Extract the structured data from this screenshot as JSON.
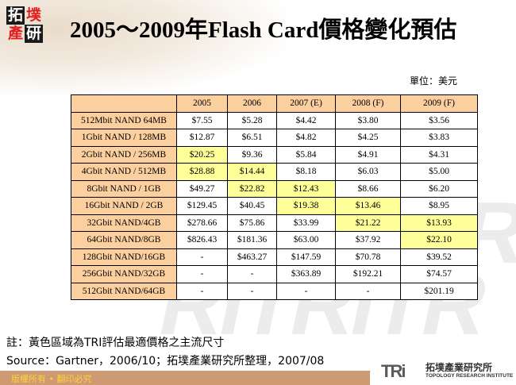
{
  "logo": {
    "chars": [
      "拓",
      "墣",
      "產",
      "研"
    ]
  },
  "title": "2005～2009年Flash Card價格變化預估",
  "unit": "單位：美元",
  "table": {
    "headers": [
      "",
      "2005",
      "2006",
      "2007 (E)",
      "2008 (F)",
      "2009 (F)"
    ],
    "rows": [
      {
        "label": "512Mbit NAND 64MB",
        "values": [
          "$7.55",
          "$5.28",
          "$4.42",
          "$3.80",
          "$3.56"
        ],
        "highlight": [
          false,
          false,
          false,
          false,
          false
        ]
      },
      {
        "label": "1Gbit NAND / 128MB",
        "values": [
          "$12.87",
          "$6.51",
          "$4.82",
          "$4.25",
          "$3.83"
        ],
        "highlight": [
          false,
          false,
          false,
          false,
          false
        ]
      },
      {
        "label": "2Gbit NAND / 256MB",
        "values": [
          "$20.25",
          "$9.36",
          "$5.84",
          "$4.91",
          "$4.31"
        ],
        "highlight": [
          true,
          false,
          false,
          false,
          false
        ]
      },
      {
        "label": "4Gbit NAND / 512MB",
        "values": [
          "$28.88",
          "$14.44",
          "$8.18",
          "$6.03",
          "$5.00"
        ],
        "highlight": [
          true,
          true,
          false,
          false,
          false
        ]
      },
      {
        "label": "8Gbit NAND / 1GB",
        "values": [
          "$49.27",
          "$22.82",
          "$12.43",
          "$8.66",
          "$6.20"
        ],
        "highlight": [
          false,
          true,
          true,
          false,
          false
        ]
      },
      {
        "label": "16Gbit NAND / 2GB",
        "values": [
          "$129.45",
          "$40.45",
          "$19.38",
          "$13.46",
          "$8.95"
        ],
        "highlight": [
          false,
          false,
          true,
          true,
          false
        ]
      },
      {
        "label": "32Gbit NAND/4GB",
        "values": [
          "$278.66",
          "$75.86",
          "$33.99",
          "$21.22",
          "$13.93"
        ],
        "highlight": [
          false,
          false,
          false,
          true,
          true
        ]
      },
      {
        "label": "64Gbit NAND/8GB",
        "values": [
          "$826.43",
          "$181.36",
          "$63.00",
          "$37.92",
          "$22.10"
        ],
        "highlight": [
          false,
          false,
          false,
          false,
          true
        ]
      },
      {
        "label": "128Gbit NAND/16GB",
        "values": [
          "-",
          "$463.27",
          "$147.59",
          "$70.78",
          "$39.52"
        ],
        "highlight": [
          false,
          false,
          false,
          false,
          false
        ]
      },
      {
        "label": "256Gbit NAND/32GB",
        "values": [
          "-",
          "-",
          "$363.89",
          "$192.21",
          "$74.57"
        ],
        "highlight": [
          false,
          false,
          false,
          false,
          false
        ]
      },
      {
        "label": "512Gbit NAND/64GB",
        "values": [
          "-",
          "-",
          "-",
          "-",
          "$201.19"
        ],
        "highlight": [
          false,
          false,
          false,
          false,
          false
        ]
      }
    ]
  },
  "note": "註：黃色區域為TRI評估最適價格之主流尺寸",
  "source": "Source：Gartner，2006/10；拓墣產業研究所整理，2007/08",
  "footer": {
    "copyright": "版權所有 • 翻印必究",
    "tri_mark": "TRi",
    "tri_cn": "拓墣產業研究所",
    "tri_en": "TOPOLOGY RESEARCH INSTITUTE"
  },
  "watermark": "TRiTRiTR",
  "colors": {
    "header_bg": "#fccf9f",
    "highlight": "#ffff99",
    "footer_bar": "#cd9a72",
    "copyright_text": "#ffd23c"
  }
}
